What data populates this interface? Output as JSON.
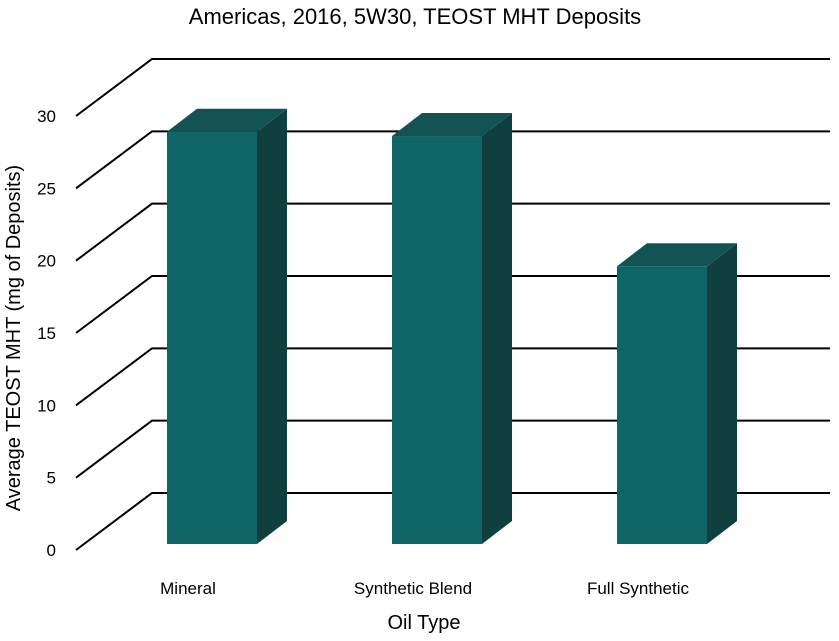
{
  "chart_data": {
    "type": "bar",
    "title": "Americas, 2016, 5W30, TEOST MHT Deposits",
    "xlabel": "Oil Type",
    "ylabel": "Average TEOST MHT (mg of Deposits)",
    "categories": [
      "Mineral",
      "Synthetic Blend",
      "Full Synthetic"
    ],
    "values": [
      28.5,
      28.2,
      19.2
    ],
    "ylim": [
      0,
      30
    ],
    "yticks": [
      0,
      5,
      10,
      15,
      20,
      25,
      30
    ],
    "grid": true,
    "style": "3d-column",
    "colors": {
      "front": "#0f6566",
      "top": "#145354",
      "side": "#0f403f"
    }
  }
}
